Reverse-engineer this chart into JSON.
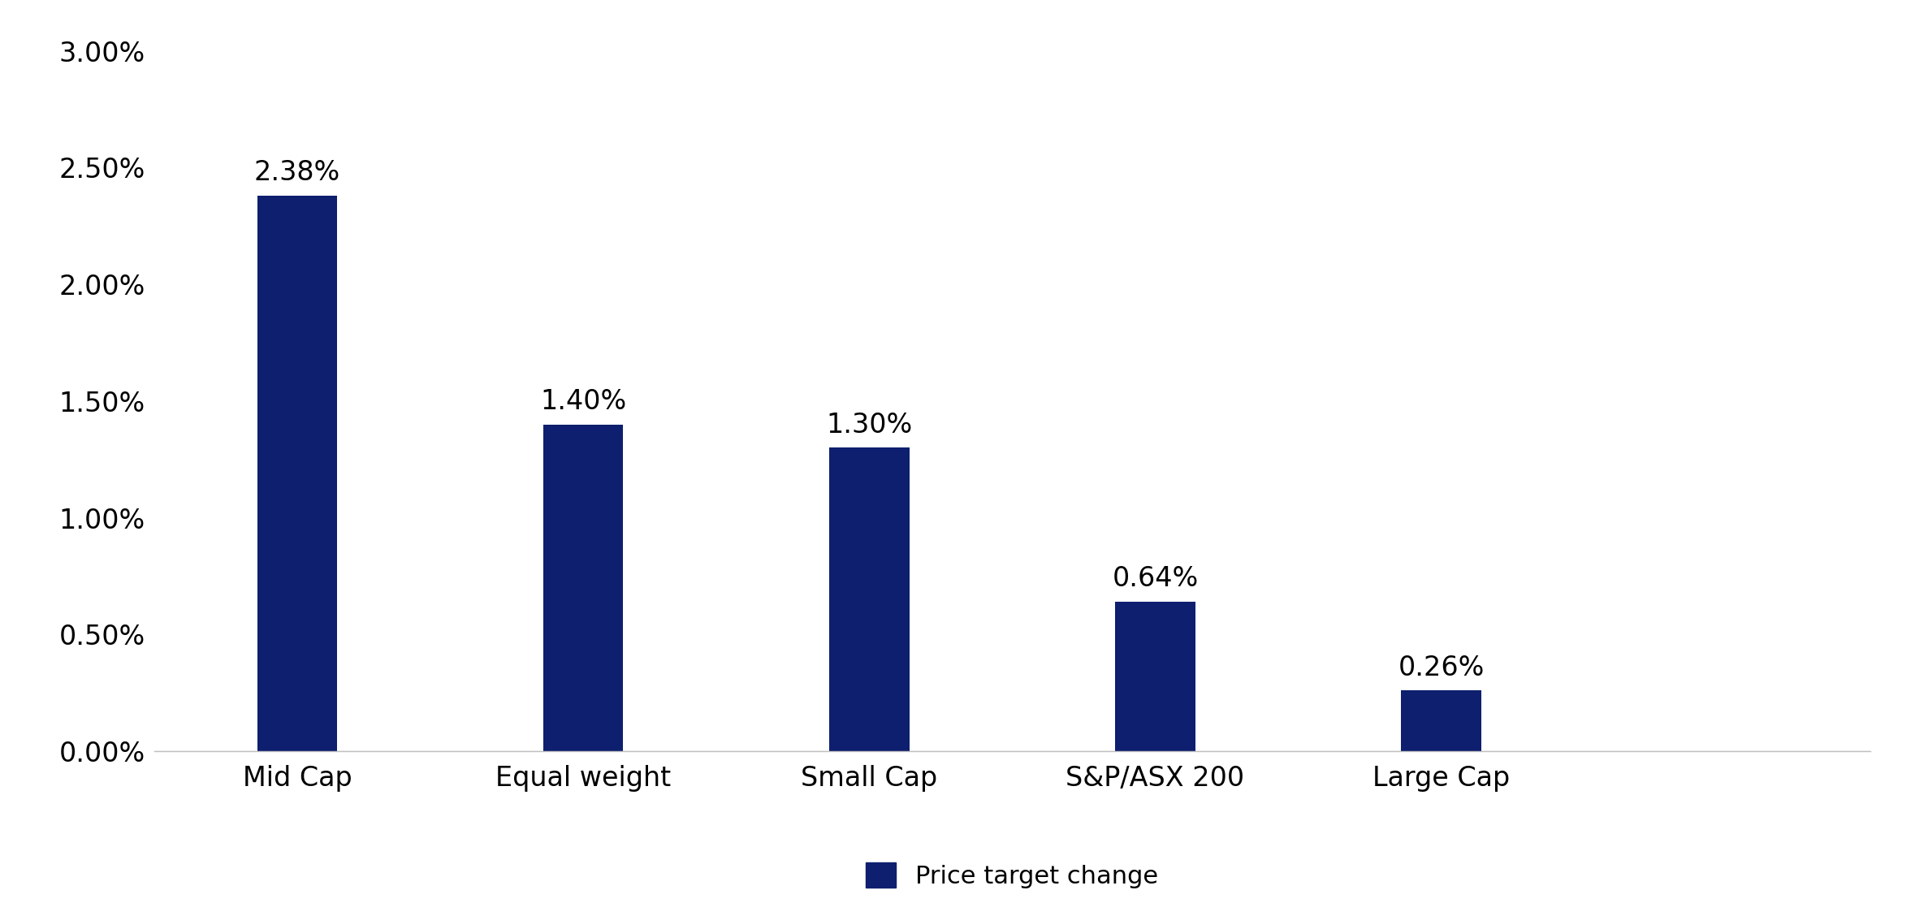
{
  "categories": [
    "Mid Cap",
    "Equal weight",
    "Small Cap",
    "S&P/ASX 200",
    "Large Cap"
  ],
  "values": [
    0.0238,
    0.014,
    0.013,
    0.0064,
    0.0026
  ],
  "labels": [
    "2.38%",
    "1.40%",
    "1.30%",
    "0.64%",
    "0.26%"
  ],
  "bar_color": "#0d1f6e",
  "ylim": [
    0,
    0.031
  ],
  "yticks": [
    0.0,
    0.005,
    0.01,
    0.015,
    0.02,
    0.025,
    0.03
  ],
  "ytick_labels": [
    "0.00%",
    "0.50%",
    "1.00%",
    "1.50%",
    "2.00%",
    "2.50%",
    "3.00%"
  ],
  "legend_label": "Price target change",
  "background_color": "#ffffff",
  "bar_width": 0.28,
  "tick_fontsize": 24,
  "legend_fontsize": 22,
  "annotation_fontsize": 24,
  "xlim_left": -0.5,
  "xlim_right": 5.5
}
